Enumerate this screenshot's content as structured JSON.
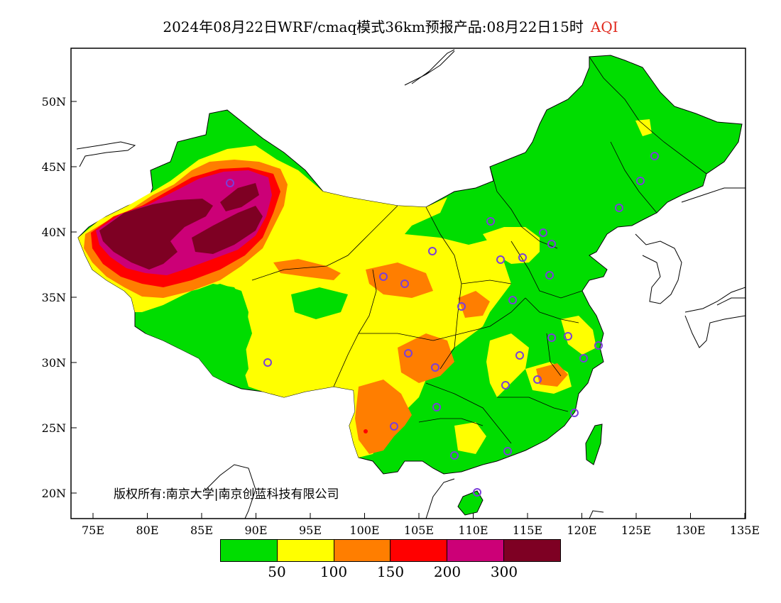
{
  "title": {
    "main": "2024年08月22日WRF/cmaq模式36km预报产品:08月22日15时",
    "aqi_label": "AQI",
    "aqi_color": "#e0281c"
  },
  "map": {
    "lat_ticks": [
      "50N",
      "45N",
      "40N",
      "35N",
      "30N",
      "25N",
      "20N"
    ],
    "lon_ticks": [
      "75E",
      "80E",
      "85E",
      "90E",
      "95E",
      "100E",
      "105E",
      "110E",
      "115E",
      "120E",
      "125E",
      "130E",
      "135E"
    ],
    "copyright": "版权所有:南京大学|南京创蓝科技有限公司"
  },
  "legend": {
    "colors": [
      "#00dd00",
      "#ffff00",
      "#ff7e00",
      "#ff0000",
      "#cc0077",
      "#7e0023"
    ],
    "thresholds": [
      "50",
      "100",
      "150",
      "200",
      "300"
    ]
  },
  "colors": {
    "good": "#00dd00",
    "moderate": "#ffff00",
    "usg": "#ff7e00",
    "unhealthy": "#ff0000",
    "very_unhealthy": "#cc0077",
    "hazardous": "#7e0023",
    "station_marker": "#7b3fd9"
  }
}
